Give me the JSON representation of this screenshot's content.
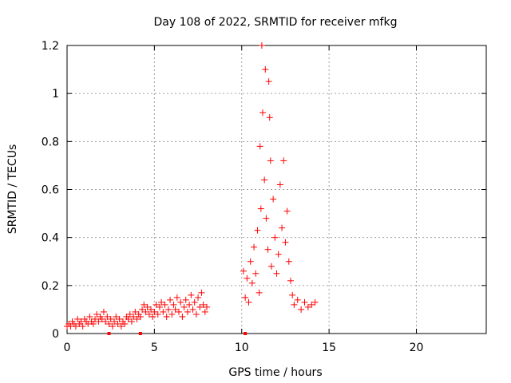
{
  "chart_data": {
    "type": "scatter",
    "title": "Day 108 of 2022, SRMTID for receiver mfkg",
    "xlabel": "GPS time / hours",
    "ylabel": "SRMTID / TECUs",
    "xlim": [
      0,
      24
    ],
    "ylim": [
      0,
      1.2
    ],
    "x_ticks": [
      0,
      5,
      10,
      15,
      20
    ],
    "x_tick_labels": [
      "0",
      "5",
      "10",
      "15",
      "20"
    ],
    "y_ticks": [
      0,
      0.2,
      0.4,
      0.6,
      0.8,
      1.0,
      1.2
    ],
    "y_tick_labels": [
      "0",
      "0.2",
      "0.4",
      "0.6",
      "0.8",
      "1",
      "1.2"
    ],
    "grid": true,
    "marker": "+",
    "color": "#ff0000",
    "series": [
      {
        "name": "SRMTID",
        "points": [
          [
            0.0,
            0.03
          ],
          [
            0.1,
            0.04
          ],
          [
            0.2,
            0.03
          ],
          [
            0.3,
            0.05
          ],
          [
            0.4,
            0.04
          ],
          [
            0.5,
            0.03
          ],
          [
            0.6,
            0.06
          ],
          [
            0.7,
            0.04
          ],
          [
            0.8,
            0.05
          ],
          [
            0.9,
            0.03
          ],
          [
            1.0,
            0.06
          ],
          [
            1.1,
            0.05
          ],
          [
            1.2,
            0.04
          ],
          [
            1.3,
            0.07
          ],
          [
            1.4,
            0.05
          ],
          [
            1.5,
            0.04
          ],
          [
            1.6,
            0.06
          ],
          [
            1.7,
            0.08
          ],
          [
            1.8,
            0.05
          ],
          [
            1.9,
            0.07
          ],
          [
            2.0,
            0.06
          ],
          [
            2.1,
            0.09
          ],
          [
            2.2,
            0.05
          ],
          [
            2.3,
            0.07
          ],
          [
            2.4,
            0.04
          ],
          [
            2.5,
            0.06
          ],
          [
            2.6,
            0.03
          ],
          [
            2.7,
            0.05
          ],
          [
            2.8,
            0.07
          ],
          [
            2.9,
            0.04
          ],
          [
            3.0,
            0.06
          ],
          [
            3.1,
            0.03
          ],
          [
            3.2,
            0.05
          ],
          [
            3.3,
            0.04
          ],
          [
            3.4,
            0.07
          ],
          [
            3.5,
            0.06
          ],
          [
            3.6,
            0.08
          ],
          [
            3.7,
            0.05
          ],
          [
            3.8,
            0.07
          ],
          [
            3.9,
            0.09
          ],
          [
            4.0,
            0.06
          ],
          [
            4.1,
            0.08
          ],
          [
            4.2,
            0.07
          ],
          [
            4.3,
            0.1
          ],
          [
            4.4,
            0.12
          ],
          [
            4.5,
            0.09
          ],
          [
            4.6,
            0.11
          ],
          [
            4.7,
            0.08
          ],
          [
            4.8,
            0.1
          ],
          [
            4.9,
            0.07
          ],
          [
            5.0,
            0.09
          ],
          [
            5.1,
            0.12
          ],
          [
            5.2,
            0.08
          ],
          [
            5.3,
            0.11
          ],
          [
            5.4,
            0.13
          ],
          [
            5.5,
            0.09
          ],
          [
            5.6,
            0.12
          ],
          [
            5.7,
            0.07
          ],
          [
            5.8,
            0.1
          ],
          [
            5.9,
            0.14
          ],
          [
            6.0,
            0.08
          ],
          [
            6.1,
            0.12
          ],
          [
            6.2,
            0.1
          ],
          [
            6.3,
            0.15
          ],
          [
            6.4,
            0.09
          ],
          [
            6.5,
            0.13
          ],
          [
            6.6,
            0.07
          ],
          [
            6.7,
            0.11
          ],
          [
            6.8,
            0.14
          ],
          [
            6.9,
            0.09
          ],
          [
            7.0,
            0.12
          ],
          [
            7.1,
            0.16
          ],
          [
            7.2,
            0.1
          ],
          [
            7.3,
            0.13
          ],
          [
            7.4,
            0.08
          ],
          [
            7.5,
            0.15
          ],
          [
            7.6,
            0.11
          ],
          [
            7.7,
            0.17
          ],
          [
            7.8,
            0.12
          ],
          [
            7.9,
            0.09
          ],
          [
            8.0,
            0.11
          ],
          [
            10.1,
            0.26
          ],
          [
            10.2,
            0.15
          ],
          [
            10.3,
            0.23
          ],
          [
            10.4,
            0.13
          ],
          [
            10.5,
            0.3
          ],
          [
            10.6,
            0.21
          ],
          [
            10.7,
            0.36
          ],
          [
            10.8,
            0.25
          ],
          [
            10.9,
            0.43
          ],
          [
            11.0,
            0.17
          ],
          [
            11.05,
            0.78
          ],
          [
            11.1,
            0.52
          ],
          [
            11.15,
            1.2
          ],
          [
            11.2,
            0.92
          ],
          [
            11.3,
            0.64
          ],
          [
            11.35,
            1.1
          ],
          [
            11.4,
            0.48
          ],
          [
            11.5,
            0.35
          ],
          [
            11.55,
            1.05
          ],
          [
            11.6,
            0.9
          ],
          [
            11.65,
            0.72
          ],
          [
            11.7,
            0.28
          ],
          [
            11.8,
            0.56
          ],
          [
            11.9,
            0.4
          ],
          [
            12.0,
            0.25
          ],
          [
            12.1,
            0.33
          ],
          [
            12.2,
            0.62
          ],
          [
            12.3,
            0.44
          ],
          [
            12.4,
            0.72
          ],
          [
            12.5,
            0.38
          ],
          [
            12.6,
            0.51
          ],
          [
            12.7,
            0.3
          ],
          [
            12.8,
            0.22
          ],
          [
            12.9,
            0.16
          ],
          [
            13.0,
            0.12
          ],
          [
            13.2,
            0.14
          ],
          [
            13.4,
            0.1
          ],
          [
            13.6,
            0.13
          ],
          [
            13.8,
            0.11
          ],
          [
            14.0,
            0.12
          ],
          [
            14.2,
            0.13
          ]
        ]
      }
    ],
    "outliers_near_zero": [
      [
        2.4,
        0.0
      ],
      [
        4.2,
        0.0
      ],
      [
        10.2,
        0.0
      ]
    ]
  }
}
